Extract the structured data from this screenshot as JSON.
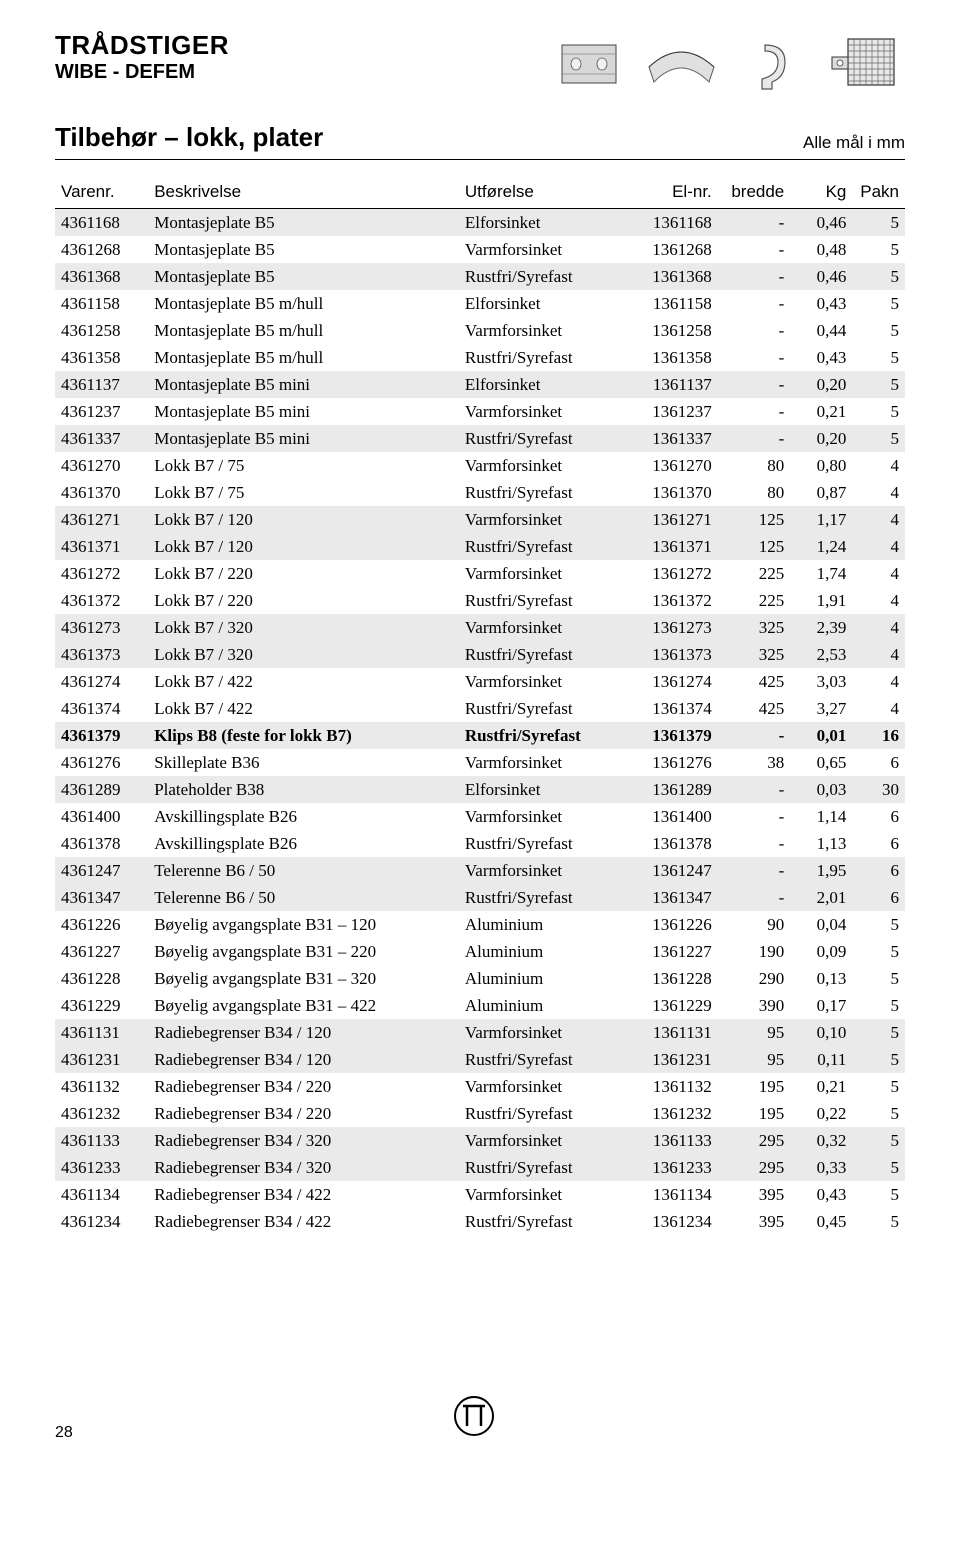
{
  "header": {
    "title_main": "TRÅDSTIGER",
    "title_sub": "WIBE - DEFEM"
  },
  "section": {
    "title": "Tilbehør – lokk, plater",
    "note": "Alle mål i mm"
  },
  "table": {
    "columns": [
      {
        "key": "varenr",
        "label": "Varenr.",
        "class": "c-varenr"
      },
      {
        "key": "besk",
        "label": "Beskrivelse",
        "class": "c-besk"
      },
      {
        "key": "utf",
        "label": "Utførelse",
        "class": "c-utf"
      },
      {
        "key": "elnr",
        "label": "El-nr.",
        "class": "c-elnr"
      },
      {
        "key": "bredde",
        "label": "bredde",
        "class": "c-bredde"
      },
      {
        "key": "kg",
        "label": "Kg",
        "class": "c-kg"
      },
      {
        "key": "pakn",
        "label": "Pakn",
        "class": "c-pakn"
      }
    ],
    "rows": [
      {
        "varenr": "4361168",
        "besk": "Montasjeplate B5",
        "utf": "Elforsinket",
        "elnr": "1361168",
        "bredde": "-",
        "kg": "0,46",
        "pakn": "5",
        "shaded": true,
        "bold": false
      },
      {
        "varenr": "4361268",
        "besk": "Montasjeplate B5",
        "utf": "Varmforsinket",
        "elnr": "1361268",
        "bredde": "-",
        "kg": "0,48",
        "pakn": "5",
        "shaded": false,
        "bold": false
      },
      {
        "varenr": "4361368",
        "besk": "Montasjeplate B5",
        "utf": "Rustfri/Syrefast",
        "elnr": "1361368",
        "bredde": "-",
        "kg": "0,46",
        "pakn": "5",
        "shaded": true,
        "bold": false
      },
      {
        "varenr": "4361158",
        "besk": "Montasjeplate B5 m/hull",
        "utf": "Elforsinket",
        "elnr": "1361158",
        "bredde": "-",
        "kg": "0,43",
        "pakn": "5",
        "shaded": false,
        "bold": false
      },
      {
        "varenr": "4361258",
        "besk": "Montasjeplate B5 m/hull",
        "utf": "Varmforsinket",
        "elnr": "1361258",
        "bredde": "-",
        "kg": "0,44",
        "pakn": "5",
        "shaded": false,
        "bold": false
      },
      {
        "varenr": "4361358",
        "besk": "Montasjeplate B5 m/hull",
        "utf": "Rustfri/Syrefast",
        "elnr": "1361358",
        "bredde": "-",
        "kg": "0,43",
        "pakn": "5",
        "shaded": false,
        "bold": false
      },
      {
        "varenr": "4361137",
        "besk": "Montasjeplate B5 mini",
        "utf": "Elforsinket",
        "elnr": "1361137",
        "bredde": "-",
        "kg": "0,20",
        "pakn": "5",
        "shaded": true,
        "bold": false
      },
      {
        "varenr": "4361237",
        "besk": "Montasjeplate B5 mini",
        "utf": "Varmforsinket",
        "elnr": "1361237",
        "bredde": "-",
        "kg": "0,21",
        "pakn": "5",
        "shaded": false,
        "bold": false
      },
      {
        "varenr": "4361337",
        "besk": "Montasjeplate B5 mini",
        "utf": "Rustfri/Syrefast",
        "elnr": "1361337",
        "bredde": "-",
        "kg": "0,20",
        "pakn": "5",
        "shaded": true,
        "bold": false
      },
      {
        "varenr": "4361270",
        "besk": "Lokk B7 / 75",
        "utf": "Varmforsinket",
        "elnr": "1361270",
        "bredde": "80",
        "kg": "0,80",
        "pakn": "4",
        "shaded": false,
        "bold": false
      },
      {
        "varenr": "4361370",
        "besk": "Lokk B7 / 75",
        "utf": "Rustfri/Syrefast",
        "elnr": "1361370",
        "bredde": "80",
        "kg": "0,87",
        "pakn": "4",
        "shaded": false,
        "bold": false
      },
      {
        "varenr": "4361271",
        "besk": "Lokk B7 / 120",
        "utf": "Varmforsinket",
        "elnr": "1361271",
        "bredde": "125",
        "kg": "1,17",
        "pakn": "4",
        "shaded": true,
        "bold": false
      },
      {
        "varenr": "4361371",
        "besk": "Lokk B7 / 120",
        "utf": "Rustfri/Syrefast",
        "elnr": "1361371",
        "bredde": "125",
        "kg": "1,24",
        "pakn": "4",
        "shaded": true,
        "bold": false
      },
      {
        "varenr": "4361272",
        "besk": "Lokk B7 / 220",
        "utf": "Varmforsinket",
        "elnr": "1361272",
        "bredde": "225",
        "kg": "1,74",
        "pakn": "4",
        "shaded": false,
        "bold": false
      },
      {
        "varenr": "4361372",
        "besk": "Lokk B7 / 220",
        "utf": "Rustfri/Syrefast",
        "elnr": "1361372",
        "bredde": "225",
        "kg": "1,91",
        "pakn": "4",
        "shaded": false,
        "bold": false
      },
      {
        "varenr": "4361273",
        "besk": "Lokk B7 / 320",
        "utf": "Varmforsinket",
        "elnr": "1361273",
        "bredde": "325",
        "kg": "2,39",
        "pakn": "4",
        "shaded": true,
        "bold": false
      },
      {
        "varenr": "4361373",
        "besk": "Lokk B7 / 320",
        "utf": "Rustfri/Syrefast",
        "elnr": "1361373",
        "bredde": "325",
        "kg": "2,53",
        "pakn": "4",
        "shaded": true,
        "bold": false
      },
      {
        "varenr": "4361274",
        "besk": "Lokk B7 / 422",
        "utf": "Varmforsinket",
        "elnr": "1361274",
        "bredde": "425",
        "kg": "3,03",
        "pakn": "4",
        "shaded": false,
        "bold": false
      },
      {
        "varenr": "4361374",
        "besk": "Lokk B7 / 422",
        "utf": "Rustfri/Syrefast",
        "elnr": "1361374",
        "bredde": "425",
        "kg": "3,27",
        "pakn": "4",
        "shaded": false,
        "bold": false
      },
      {
        "varenr": "4361379",
        "besk": "Klips B8 (feste for lokk B7)",
        "utf": "Rustfri/Syrefast",
        "elnr": "1361379",
        "bredde": "-",
        "kg": "0,01",
        "pakn": "16",
        "shaded": true,
        "bold": true
      },
      {
        "varenr": "4361276",
        "besk": "Skilleplate B36",
        "utf": "Varmforsinket",
        "elnr": "1361276",
        "bredde": "38",
        "kg": "0,65",
        "pakn": "6",
        "shaded": false,
        "bold": false
      },
      {
        "varenr": "4361289",
        "besk": "Plateholder B38",
        "utf": "Elforsinket",
        "elnr": "1361289",
        "bredde": "-",
        "kg": "0,03",
        "pakn": "30",
        "shaded": true,
        "bold": false
      },
      {
        "varenr": "4361400",
        "besk": "Avskillingsplate B26",
        "utf": "Varmforsinket",
        "elnr": "1361400",
        "bredde": "-",
        "kg": "1,14",
        "pakn": "6",
        "shaded": false,
        "bold": false
      },
      {
        "varenr": "4361378",
        "besk": "Avskillingsplate B26",
        "utf": "Rustfri/Syrefast",
        "elnr": "1361378",
        "bredde": "-",
        "kg": "1,13",
        "pakn": "6",
        "shaded": false,
        "bold": false
      },
      {
        "varenr": "4361247",
        "besk": "Telerenne B6 / 50",
        "utf": "Varmforsinket",
        "elnr": "1361247",
        "bredde": "-",
        "kg": "1,95",
        "pakn": "6",
        "shaded": true,
        "bold": false
      },
      {
        "varenr": "4361347",
        "besk": "Telerenne B6 / 50",
        "utf": "Rustfri/Syrefast",
        "elnr": "1361347",
        "bredde": "-",
        "kg": "2,01",
        "pakn": "6",
        "shaded": true,
        "bold": false
      },
      {
        "varenr": "4361226",
        "besk": "Bøyelig avgangsplate B31 – 120",
        "utf": "Aluminium",
        "elnr": "1361226",
        "bredde": "90",
        "kg": "0,04",
        "pakn": "5",
        "shaded": false,
        "bold": false
      },
      {
        "varenr": "4361227",
        "besk": "Bøyelig avgangsplate B31 – 220",
        "utf": "Aluminium",
        "elnr": "1361227",
        "bredde": "190",
        "kg": "0,09",
        "pakn": "5",
        "shaded": false,
        "bold": false
      },
      {
        "varenr": "4361228",
        "besk": "Bøyelig avgangsplate B31 – 320",
        "utf": "Aluminium",
        "elnr": "1361228",
        "bredde": "290",
        "kg": "0,13",
        "pakn": "5",
        "shaded": false,
        "bold": false
      },
      {
        "varenr": "4361229",
        "besk": "Bøyelig avgangsplate B31 – 422",
        "utf": "Aluminium",
        "elnr": "1361229",
        "bredde": "390",
        "kg": "0,17",
        "pakn": "5",
        "shaded": false,
        "bold": false
      },
      {
        "varenr": "4361131",
        "besk": "Radiebegrenser B34 / 120",
        "utf": "Varmforsinket",
        "elnr": "1361131",
        "bredde": "95",
        "kg": "0,10",
        "pakn": "5",
        "shaded": true,
        "bold": false
      },
      {
        "varenr": "4361231",
        "besk": "Radiebegrenser B34 / 120",
        "utf": "Rustfri/Syrefast",
        "elnr": "1361231",
        "bredde": "95",
        "kg": "0,11",
        "pakn": "5",
        "shaded": true,
        "bold": false
      },
      {
        "varenr": "4361132",
        "besk": "Radiebegrenser B34 / 220",
        "utf": "Varmforsinket",
        "elnr": "1361132",
        "bredde": "195",
        "kg": "0,21",
        "pakn": "5",
        "shaded": false,
        "bold": false
      },
      {
        "varenr": "4361232",
        "besk": "Radiebegrenser B34 / 220",
        "utf": "Rustfri/Syrefast",
        "elnr": "1361232",
        "bredde": "195",
        "kg": "0,22",
        "pakn": "5",
        "shaded": false,
        "bold": false
      },
      {
        "varenr": "4361133",
        "besk": "Radiebegrenser B34 / 320",
        "utf": "Varmforsinket",
        "elnr": "1361133",
        "bredde": "295",
        "kg": "0,32",
        "pakn": "5",
        "shaded": true,
        "bold": false
      },
      {
        "varenr": "4361233",
        "besk": "Radiebegrenser B34 / 320",
        "utf": "Rustfri/Syrefast",
        "elnr": "1361233",
        "bredde": "295",
        "kg": "0,33",
        "pakn": "5",
        "shaded": true,
        "bold": false
      },
      {
        "varenr": "4361134",
        "besk": "Radiebegrenser B34 / 422",
        "utf": "Varmforsinket",
        "elnr": "1361134",
        "bredde": "395",
        "kg": "0,43",
        "pakn": "5",
        "shaded": false,
        "bold": false
      },
      {
        "varenr": "4361234",
        "besk": "Radiebegrenser B34 / 422",
        "utf": "Rustfri/Syrefast",
        "elnr": "1361234",
        "bredde": "395",
        "kg": "0,45",
        "pakn": "5",
        "shaded": false,
        "bold": false
      }
    ]
  },
  "footer": {
    "page_num": "28"
  }
}
